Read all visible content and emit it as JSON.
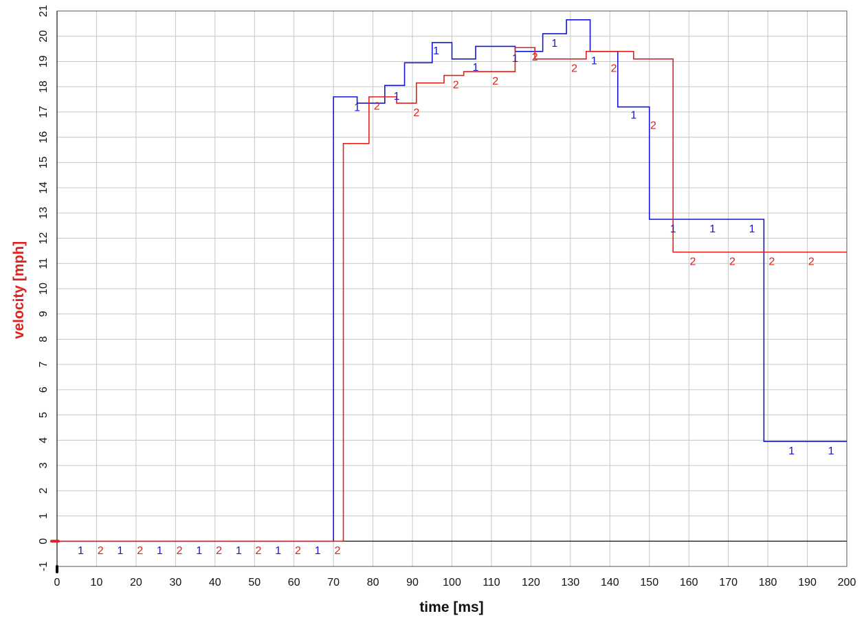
{
  "chart_data": {
    "type": "line",
    "xlabel": "time [ms]",
    "ylabel": "velocity [mph]",
    "xlim": [
      0,
      200
    ],
    "ylim": [
      -1,
      21
    ],
    "x_ticks": [
      0,
      10,
      20,
      30,
      40,
      50,
      60,
      70,
      80,
      90,
      100,
      110,
      120,
      130,
      140,
      150,
      160,
      170,
      180,
      190,
      200
    ],
    "y_ticks": [
      -1,
      0,
      1,
      2,
      3,
      4,
      5,
      6,
      7,
      8,
      9,
      10,
      11,
      12,
      13,
      14,
      15,
      16,
      17,
      18,
      19,
      20,
      21
    ],
    "grid": true,
    "step_style": "post",
    "colors": {
      "axis_title": "#e0201a",
      "grid": "#c6c6c6",
      "axis": "#111111"
    },
    "series": [
      {
        "name": "1",
        "color": "#1414d2",
        "x": [
          0,
          70,
          76,
          83,
          88,
          95,
          100,
          106,
          116,
          123,
          129,
          135,
          142,
          150,
          179,
          200
        ],
        "y": [
          0,
          17.6,
          17.35,
          18.05,
          18.95,
          19.75,
          19.1,
          19.6,
          19.4,
          20.1,
          20.65,
          19.4,
          17.2,
          12.75,
          3.95,
          3.95
        ],
        "marker_x": [
          6,
          16,
          26,
          36,
          46,
          56,
          66,
          76,
          86,
          96,
          106,
          116,
          126,
          136,
          146,
          156,
          166,
          176,
          186,
          196
        ],
        "marker_y": [
          -0.35,
          -0.35,
          -0.35,
          -0.35,
          -0.35,
          -0.35,
          -0.35,
          17.2,
          17.65,
          19.45,
          18.8,
          19.15,
          19.75,
          19.05,
          16.9,
          12.4,
          12.4,
          12.4,
          3.6,
          3.6
        ]
      },
      {
        "name": "2",
        "color": "#e0201a",
        "x": [
          0,
          72.5,
          79,
          86,
          91,
          98,
          103,
          116,
          121,
          134,
          146,
          156,
          200
        ],
        "y": [
          0,
          15.75,
          17.6,
          17.35,
          18.15,
          18.45,
          18.6,
          19.55,
          19.1,
          19.4,
          19.1,
          11.45,
          11.45
        ],
        "marker_x": [
          11,
          21,
          31,
          41,
          51,
          61,
          71,
          81,
          91,
          101,
          111,
          121,
          131,
          141,
          151,
          161,
          171,
          181,
          191
        ],
        "marker_y": [
          -0.35,
          -0.35,
          -0.35,
          -0.35,
          -0.35,
          -0.35,
          -0.35,
          17.25,
          17.0,
          18.1,
          18.25,
          19.2,
          18.75,
          18.75,
          16.5,
          11.1,
          11.1,
          11.1,
          11.1
        ]
      }
    ]
  }
}
